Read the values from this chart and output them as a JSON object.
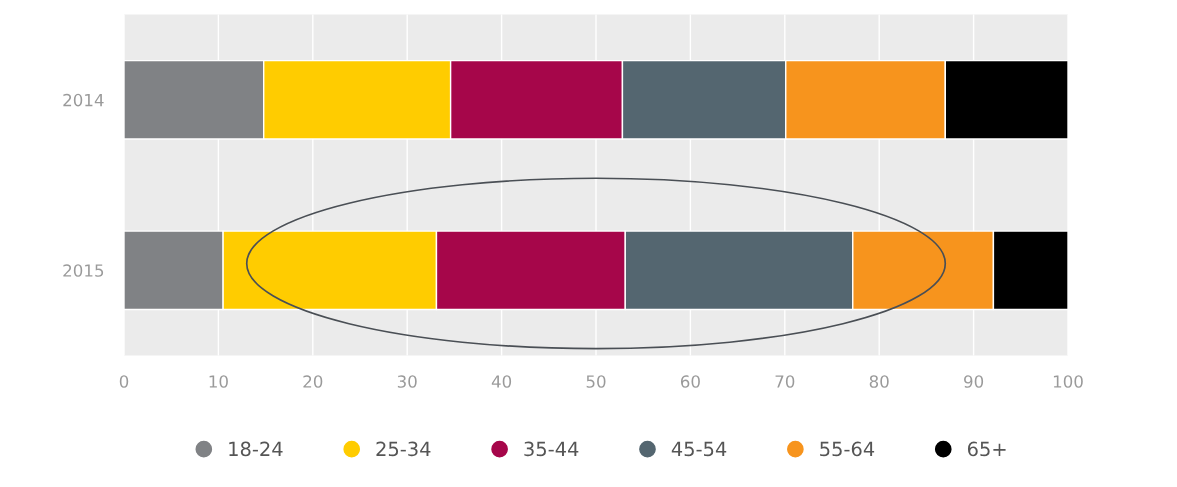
{
  "chart_data": {
    "type": "bar",
    "orientation": "horizontal",
    "stacked": true,
    "categories": [
      "2014",
      "2015"
    ],
    "series": [
      {
        "name": "18-24",
        "color": "#808285",
        "values": [
          14.8,
          10.5
        ]
      },
      {
        "name": "25-34",
        "color": "#ffcc00",
        "values": [
          19.8,
          22.6
        ]
      },
      {
        "name": "35-44",
        "color": "#a6064a",
        "values": [
          18.2,
          20.0
        ]
      },
      {
        "name": "45-54",
        "color": "#546670",
        "values": [
          17.3,
          24.1
        ]
      },
      {
        "name": "55-64",
        "color": "#f7941d",
        "values": [
          16.9,
          14.9
        ]
      },
      {
        "name": "65+",
        "color": "#000000",
        "values": [
          13.0,
          7.9
        ]
      }
    ],
    "xlim": [
      0,
      100
    ],
    "xticks": [
      0,
      10,
      20,
      30,
      40,
      50,
      60,
      70,
      80,
      90,
      100
    ],
    "grid": "x",
    "legend": "bottom"
  }
}
